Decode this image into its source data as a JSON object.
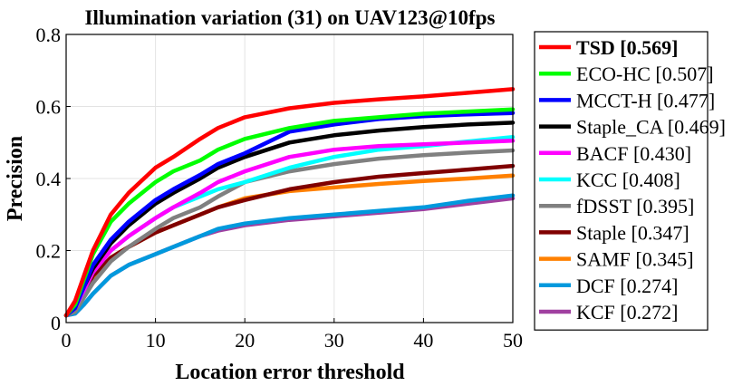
{
  "chart_data": {
    "type": "line",
    "title": "Illumination variation (31) on UAV123@10fps",
    "xlabel": "Location error threshold",
    "ylabel": "Precision",
    "xlim": [
      0,
      50
    ],
    "ylim": [
      0,
      0.8
    ],
    "xticks": [
      "0",
      "10",
      "20",
      "30",
      "40",
      "50"
    ],
    "yticks": [
      "0",
      "0.2",
      "0.4",
      "0.6",
      "0.8"
    ],
    "grid": true,
    "legend_position": "outside-right",
    "x": [
      0,
      1,
      2,
      3,
      5,
      7,
      10,
      12,
      15,
      17,
      20,
      25,
      30,
      35,
      40,
      45,
      50
    ],
    "series": [
      {
        "name": "TSD [0.569]",
        "color": "#ff0000",
        "bold": true,
        "values": [
          0.02,
          0.06,
          0.13,
          0.2,
          0.3,
          0.36,
          0.43,
          0.46,
          0.51,
          0.54,
          0.57,
          0.595,
          0.61,
          0.62,
          0.628,
          0.638,
          0.648
        ]
      },
      {
        "name": "ECO-HC [0.507]",
        "color": "#00ff00",
        "bold": false,
        "values": [
          0.02,
          0.05,
          0.12,
          0.19,
          0.28,
          0.33,
          0.39,
          0.42,
          0.45,
          0.48,
          0.51,
          0.54,
          0.56,
          0.57,
          0.58,
          0.586,
          0.592
        ]
      },
      {
        "name": "MCCT-H [0.477]",
        "color": "#0000ff",
        "bold": false,
        "values": [
          0.02,
          0.04,
          0.1,
          0.16,
          0.23,
          0.28,
          0.34,
          0.37,
          0.41,
          0.44,
          0.47,
          0.53,
          0.55,
          0.565,
          0.573,
          0.578,
          0.582
        ]
      },
      {
        "name": "Staple_CA [0.469]",
        "color": "#000000",
        "bold": false,
        "values": [
          0.02,
          0.045,
          0.1,
          0.15,
          0.22,
          0.27,
          0.33,
          0.36,
          0.4,
          0.43,
          0.46,
          0.5,
          0.52,
          0.533,
          0.543,
          0.55,
          0.555
        ]
      },
      {
        "name": "BACF [0.430]",
        "color": "#ff00ff",
        "bold": false,
        "values": [
          0.02,
          0.04,
          0.09,
          0.14,
          0.2,
          0.24,
          0.29,
          0.32,
          0.36,
          0.39,
          0.42,
          0.46,
          0.48,
          0.49,
          0.495,
          0.5,
          0.505
        ]
      },
      {
        "name": "KCC [0.408]",
        "color": "#00ffff",
        "bold": false,
        "values": [
          0.02,
          0.04,
          0.09,
          0.14,
          0.2,
          0.24,
          0.29,
          0.32,
          0.35,
          0.37,
          0.39,
          0.43,
          0.46,
          0.48,
          0.49,
          0.503,
          0.515
        ]
      },
      {
        "name": "fDSST [0.395]",
        "color": "#808080",
        "bold": false,
        "values": [
          0.02,
          0.03,
          0.07,
          0.11,
          0.17,
          0.21,
          0.26,
          0.29,
          0.32,
          0.35,
          0.39,
          0.42,
          0.44,
          0.455,
          0.465,
          0.472,
          0.478
        ]
      },
      {
        "name": "Staple [0.347]",
        "color": "#800000",
        "bold": false,
        "values": [
          0.02,
          0.035,
          0.08,
          0.13,
          0.18,
          0.21,
          0.25,
          0.27,
          0.3,
          0.32,
          0.34,
          0.37,
          0.39,
          0.405,
          0.415,
          0.425,
          0.435
        ]
      },
      {
        "name": "SAMF [0.345]",
        "color": "#ff8000",
        "bold": false,
        "values": [
          0.02,
          0.035,
          0.08,
          0.12,
          0.18,
          0.21,
          0.25,
          0.27,
          0.3,
          0.32,
          0.345,
          0.365,
          0.375,
          0.385,
          0.393,
          0.4,
          0.408
        ]
      },
      {
        "name": "DCF [0.274]",
        "color": "#0099dd",
        "bold": false,
        "values": [
          0.02,
          0.025,
          0.05,
          0.08,
          0.13,
          0.16,
          0.19,
          0.21,
          0.24,
          0.26,
          0.275,
          0.29,
          0.3,
          0.31,
          0.32,
          0.338,
          0.353
        ]
      },
      {
        "name": "KCF [0.272]",
        "color": "#a040a0",
        "bold": false,
        "values": [
          0.02,
          0.025,
          0.05,
          0.08,
          0.13,
          0.16,
          0.19,
          0.21,
          0.24,
          0.255,
          0.27,
          0.285,
          0.295,
          0.305,
          0.315,
          0.33,
          0.345
        ]
      }
    ]
  }
}
